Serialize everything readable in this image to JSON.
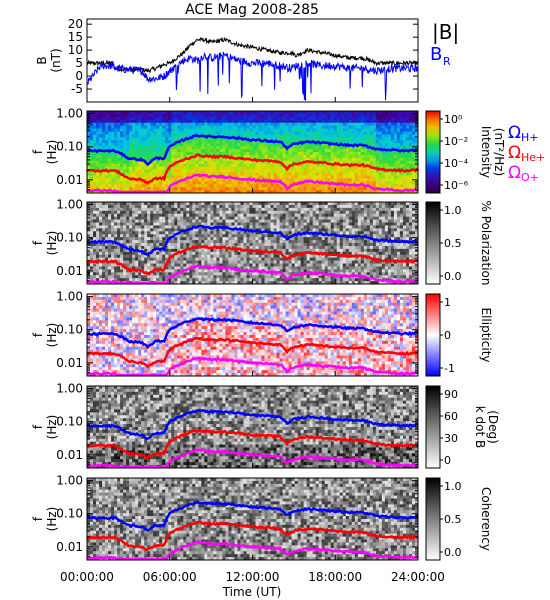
{
  "figure_title": "ACE Mag 2008-285",
  "colors": {
    "total_field": "#000000",
    "radial_field": "#0000ff",
    "h_gyro": "#0000ff",
    "he_gyro": "#ff0000",
    "o_gyro": "#ff00ff"
  },
  "chart_data": [
    {
      "type": "line",
      "panel": "magnetic-field",
      "ylabel": "B",
      "yunits": "(nT)",
      "ylim": [
        -10,
        22
      ],
      "yticks": [
        "20",
        "15",
        "10",
        "5",
        "0",
        "-5"
      ],
      "legend": {
        "total_label": "|B|",
        "radial_label": "B",
        "radial_sub": "R"
      },
      "x_hours": [
        0,
        1,
        1.9,
        2,
        3,
        4,
        4.4,
        5,
        5.6,
        6,
        6.5,
        7,
        7.5,
        8,
        8.5,
        9,
        10,
        11,
        12,
        13,
        14,
        14.8,
        15.2,
        16,
        17,
        18,
        19,
        20,
        21,
        22,
        23,
        24
      ],
      "series": [
        {
          "name": "|B|",
          "values": [
            5,
            5,
            5,
            3,
            2.5,
            2.5,
            2,
            3,
            4.5,
            5,
            7,
            9,
            12,
            14,
            14,
            13,
            14,
            12,
            11,
            10,
            9,
            9,
            8,
            10,
            9,
            8,
            7,
            7,
            5,
            5,
            5,
            5
          ]
        },
        {
          "name": "B_R",
          "values": [
            -3,
            4,
            4,
            3,
            2.5,
            2,
            -1,
            -1,
            0,
            2,
            4,
            6,
            7,
            6,
            8,
            7,
            8,
            6,
            5,
            5,
            4,
            3,
            4,
            5,
            4,
            4,
            3,
            3,
            2,
            3,
            3,
            3
          ]
        }
      ],
      "xlim": [
        0,
        24
      ]
    },
    {
      "type": "heatmap",
      "panel": "power-spectrum",
      "ylabel": "f",
      "yunits": "(Hz)",
      "yscale": "log",
      "ylim": [
        0.004,
        1.2
      ],
      "yticks": [
        "1.00",
        "0.10",
        "0.01"
      ],
      "colorbar": {
        "label": "Intensity",
        "units": "(nT²/Hz)",
        "ticks": [
          "10⁰",
          "10⁻²",
          "10⁻⁴",
          "10⁻⁶"
        ],
        "scale": "rainbow"
      },
      "legend": [
        "Ω",
        "Ω",
        "Ω"
      ],
      "legend_subs": [
        "H+",
        "He+",
        "O+"
      ]
    },
    {
      "type": "heatmap",
      "panel": "polarization",
      "ylabel": "f",
      "yunits": "(Hz)",
      "yscale": "log",
      "yticks": [
        "1.00",
        "0.10",
        "0.01"
      ],
      "colorbar": {
        "label": "% Polarization",
        "ticks": [
          "1.0",
          "0.5",
          "0.0"
        ],
        "scale": "grayscale"
      }
    },
    {
      "type": "heatmap",
      "panel": "ellipticity",
      "ylabel": "f",
      "yunits": "(Hz)",
      "yscale": "log",
      "yticks": [
        "1.00",
        "0.10",
        "0.01"
      ],
      "colorbar": {
        "label": "Ellipticity",
        "ticks": [
          "1",
          "0",
          "-1"
        ],
        "scale": "blue-white-red"
      }
    },
    {
      "type": "heatmap",
      "panel": "wave-normal-angle",
      "ylabel": "f",
      "yunits": "(Hz)",
      "yscale": "log",
      "yticks": [
        "1.00",
        "0.10",
        "0.01"
      ],
      "colorbar": {
        "label": "k dot B",
        "units": "(Deg)",
        "ticks": [
          "90",
          "60",
          "30",
          "0"
        ],
        "scale": "grayscale"
      }
    },
    {
      "type": "heatmap",
      "panel": "coherency",
      "ylabel": "f",
      "yunits": "(Hz)",
      "yscale": "log",
      "yticks": [
        "1.00",
        "0.10",
        "0.01"
      ],
      "colorbar": {
        "label": "Coherency",
        "ticks": [
          "1.0",
          "0.5",
          "0.0"
        ],
        "scale": "grayscale"
      }
    }
  ],
  "gyrofrequency_lines": {
    "x_hours": [
      0,
      1,
      2,
      3,
      4,
      4.4,
      5,
      5.6,
      6,
      7,
      8,
      9,
      10,
      11,
      12,
      13,
      14,
      14.5,
      15,
      16,
      17,
      18,
      19,
      20,
      21,
      22,
      23,
      24
    ],
    "H_plus_Hz": [
      0.075,
      0.075,
      0.075,
      0.045,
      0.04,
      0.03,
      0.045,
      0.045,
      0.1,
      0.16,
      0.22,
      0.2,
      0.2,
      0.18,
      0.16,
      0.15,
      0.14,
      0.09,
      0.12,
      0.14,
      0.13,
      0.12,
      0.11,
      0.11,
      0.085,
      0.08,
      0.075,
      0.08
    ],
    "He_plus_Hz": [
      0.019,
      0.019,
      0.019,
      0.011,
      0.01,
      0.008,
      0.011,
      0.011,
      0.025,
      0.04,
      0.055,
      0.05,
      0.05,
      0.045,
      0.04,
      0.038,
      0.035,
      0.022,
      0.03,
      0.035,
      0.033,
      0.03,
      0.028,
      0.028,
      0.021,
      0.02,
      0.019,
      0.02
    ],
    "O_plus_Hz": [
      0.0047,
      0.0047,
      0.0047,
      0.0028,
      0.0025,
      0.002,
      0.0028,
      0.0028,
      0.0062,
      0.01,
      0.014,
      0.0125,
      0.0125,
      0.011,
      0.01,
      0.0094,
      0.0088,
      0.0056,
      0.0075,
      0.0088,
      0.0083,
      0.0075,
      0.007,
      0.007,
      0.0053,
      0.005,
      0.0047,
      0.005
    ]
  },
  "xaxis": {
    "label": "Time (UT)",
    "ticks": [
      "00:00:00",
      "06:00:00",
      "12:00:00",
      "18:00:00",
      "24:00:00"
    ],
    "tick_hours": [
      0,
      6,
      12,
      18,
      24
    ]
  }
}
